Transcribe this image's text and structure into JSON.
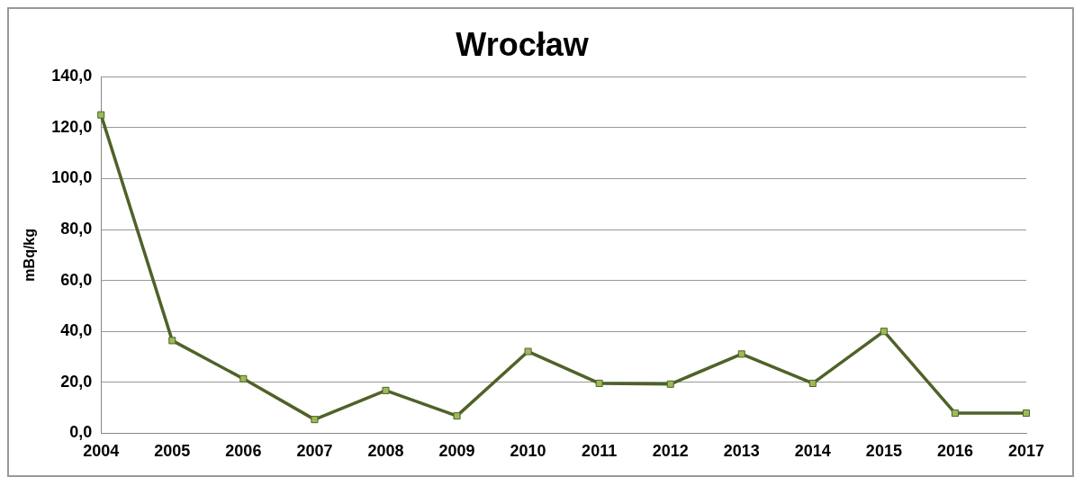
{
  "chart_data": {
    "type": "line",
    "title": "Wrocław",
    "ylabel": "mBq/kg",
    "categories": [
      "2004",
      "2005",
      "2006",
      "2007",
      "2008",
      "2009",
      "2010",
      "2011",
      "2012",
      "2013",
      "2014",
      "2015",
      "2016",
      "2017"
    ],
    "series": [
      {
        "color": "#4f6228",
        "values": [
          125.0,
          36.4,
          21.4,
          5.4,
          16.8,
          6.8,
          32.1,
          19.6,
          19.3,
          31.1,
          19.6,
          40.0,
          7.9,
          7.9
        ]
      }
    ],
    "ylim": [
      0,
      140
    ],
    "yticks": [
      {
        "value": 0,
        "label": "0,0"
      },
      {
        "value": 20,
        "label": "20,0"
      },
      {
        "value": 40,
        "label": "40,0"
      },
      {
        "value": 60,
        "label": "60,0"
      },
      {
        "value": 80,
        "label": "80,0"
      },
      {
        "value": 100,
        "label": "100,0"
      },
      {
        "value": 120,
        "label": "120,0"
      },
      {
        "value": 140,
        "label": "140,0"
      }
    ],
    "grid": "y",
    "legend": false,
    "marker": "square",
    "line_style": "solid"
  }
}
